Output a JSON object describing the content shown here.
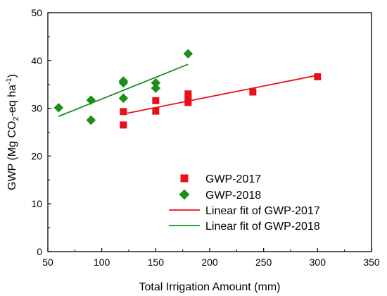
{
  "chart_data": {
    "type": "scatter",
    "xlabel": "Total Irrigation Amount (mm)",
    "ylabel": {
      "prefix": "GWP (Mg CO",
      "sub": "2",
      "middle": "-eq ha",
      "sup": "-1",
      "suffix": ")"
    },
    "xlim": [
      50,
      350
    ],
    "ylim": [
      0,
      50
    ],
    "x_ticks": [
      50,
      100,
      150,
      200,
      250,
      300,
      350
    ],
    "y_ticks": [
      0,
      10,
      20,
      30,
      40,
      50
    ],
    "legend_position": "bottom-right",
    "series": [
      {
        "name": "GWP-2017",
        "marker": "square",
        "color": "#e8111b",
        "x": [
          120,
          120,
          150,
          150,
          180,
          180,
          180,
          240,
          300
        ],
        "y": [
          29.3,
          26.5,
          31.6,
          29.4,
          33.0,
          32.2,
          31.2,
          33.4,
          36.6
        ]
      },
      {
        "name": "GWP-2018",
        "marker": "diamond",
        "color": "#1b8f1b",
        "x": [
          60,
          90,
          90,
          120,
          120,
          120,
          150,
          150,
          180
        ],
        "y": [
          30.1,
          31.7,
          27.5,
          35.7,
          35.3,
          32.1,
          35.3,
          34.2,
          41.4
        ]
      }
    ],
    "fits": [
      {
        "name": "Linear fit of GWP-2017",
        "color": "#e8111b",
        "x": [
          120,
          300
        ],
        "y": [
          28.8,
          36.9
        ]
      },
      {
        "name": "Linear fit of GWP-2018",
        "color": "#1b8f1b",
        "x": [
          60,
          180
        ],
        "y": [
          28.3,
          39.2
        ]
      }
    ]
  }
}
